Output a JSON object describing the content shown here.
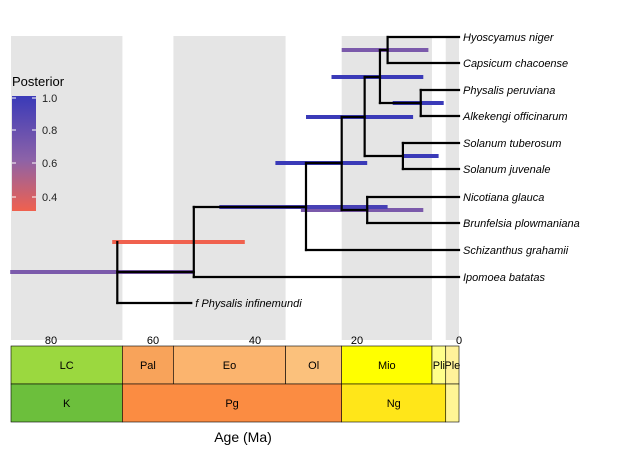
{
  "chart_data": {
    "type": "phylogenetic-tree",
    "title": "",
    "xlabel": "Age (Ma)",
    "x_axis": {
      "ticks": [
        80,
        60,
        40,
        20,
        0
      ],
      "reversed": true,
      "range_ma": [
        88,
        0
      ]
    },
    "grid_bands_ma": [
      [
        88,
        66
      ],
      [
        56,
        34
      ],
      [
        23,
        5.3
      ],
      [
        2.6,
        0
      ]
    ],
    "tips": [
      {
        "name": "Hyoscyamus niger",
        "age": 0
      },
      {
        "name": "Capsicum chacoense",
        "age": 0
      },
      {
        "name": "Physalis peruviana",
        "age": 0
      },
      {
        "name": "Alkekengi officinarum",
        "age": 0
      },
      {
        "name": "Solanum tuberosum",
        "age": 0
      },
      {
        "name": "Solanum juvenale",
        "age": 0
      },
      {
        "name": "Nicotiana glauca",
        "age": 0
      },
      {
        "name": "Brunfelsia plowmaniana",
        "age": 0
      },
      {
        "name": "Schizanthus grahamii",
        "age": 0
      },
      {
        "name": "Ipomoea batatas",
        "age": 0
      },
      {
        "name": "f Physalis infinemundi",
        "age": 52.5
      }
    ],
    "nodes": [
      {
        "id": "hyo_cap",
        "age": 14,
        "ci": [
          23,
          6
        ],
        "posterior": 0.75
      },
      {
        "id": "phy_alk",
        "age": 7.5,
        "ci": [
          13,
          3
        ],
        "posterior": 1.0
      },
      {
        "id": "physaleae",
        "age": 15.5,
        "ci": [
          25,
          7
        ],
        "posterior": 1.0
      },
      {
        "id": "sol",
        "age": 11,
        "ci": [
          11,
          4
        ],
        "posterior": 1.0
      },
      {
        "id": "crown_core",
        "age": 18.5,
        "ci": [
          30,
          9
        ],
        "posterior": 1.0
      },
      {
        "id": "nic_bru",
        "age": 18,
        "ci": [
          31,
          7
        ],
        "posterior": 0.75
      },
      {
        "id": "solanoideae",
        "age": 23,
        "ci": [
          36,
          18
        ],
        "posterior": 1.0
      },
      {
        "id": "solanaceae_core",
        "age": 30,
        "ci": [
          42,
          14
        ],
        "posterior": 0.95
      },
      {
        "id": "solanaceae",
        "age": 52,
        "ci": [
          47,
          30
        ],
        "posterior": 0.95
      },
      {
        "id": "stem_fossil",
        "age": 67,
        "ci": [
          68,
          42
        ],
        "posterior": 0.3
      },
      {
        "id": "root",
        "age": 53,
        "ci": [
          88,
          52
        ],
        "posterior": 0.75
      }
    ],
    "legend": {
      "title": "Posterior",
      "labels": [
        "1.0",
        "0.8",
        "0.6",
        "0.4"
      ],
      "values": [
        1.0,
        0.8,
        0.6,
        0.4
      ],
      "range": [
        0.3,
        1.0
      ],
      "color_high": "#3a3ab8",
      "color_mid": "#8c62a8",
      "color_low": "#f0614e",
      "placement": "top-left"
    },
    "timescale": {
      "epochs": [
        {
          "name": "LC",
          "start": 88,
          "end": 66,
          "color": "#9bd83f"
        },
        {
          "name": "Pal",
          "start": 66,
          "end": 56,
          "color": "#f8a35a"
        },
        {
          "name": "Eo",
          "start": 56,
          "end": 34,
          "color": "#fbb46e"
        },
        {
          "name": "Ol",
          "start": 34,
          "end": 23,
          "color": "#fbc17c"
        },
        {
          "name": "Mio",
          "start": 23,
          "end": 5.3,
          "color": "#ffff00"
        },
        {
          "name": "Pli",
          "start": 5.3,
          "end": 2.6,
          "color": "#ffff8a"
        },
        {
          "name": "Ple",
          "start": 2.6,
          "end": 0,
          "color": "#fff29a"
        }
      ],
      "periods": [
        {
          "name": "K",
          "start": 88,
          "end": 66,
          "color": "#6cbf3c"
        },
        {
          "name": "Pg",
          "start": 66,
          "end": 23,
          "color": "#fb8c42"
        },
        {
          "name": "Ng",
          "start": 23,
          "end": 2.6,
          "color": "#ffe619"
        },
        {
          "name": "",
          "start": 2.6,
          "end": 0,
          "color": "#fff595"
        }
      ]
    }
  }
}
